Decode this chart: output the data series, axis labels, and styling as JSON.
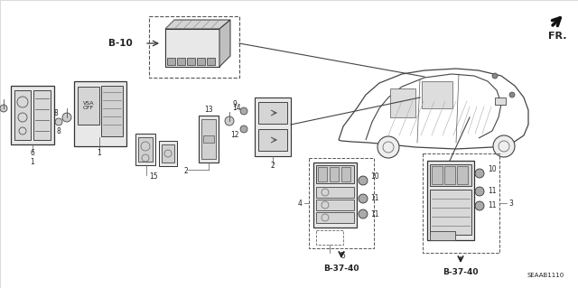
{
  "bg_color": "#ffffff",
  "line_color": "#333333",
  "labels": {
    "b10": "B-10",
    "b37_40": "B-37-40",
    "fr": "FR.",
    "code": "SEAAB1110",
    "vsa": "VSA\nOFF"
  }
}
